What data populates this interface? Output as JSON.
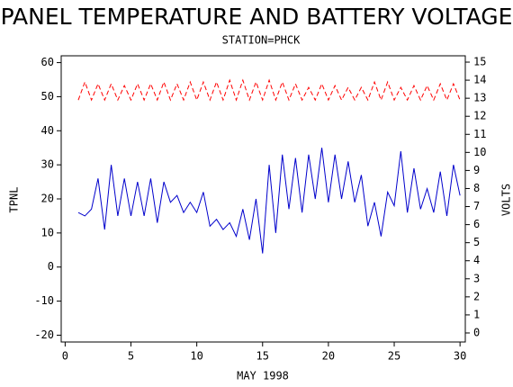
{
  "chart_data": {
    "type": "line",
    "title": "PANEL TEMPERATURE AND BATTERY VOLTAGE",
    "subtitle": "STATION=PHCK",
    "xlabel": "MAY 1998",
    "ylabel": "TPNL",
    "y2label": "VOLTS",
    "x": [
      1,
      1.5,
      2,
      2.5,
      3,
      3.5,
      4,
      4.5,
      5,
      5.5,
      6,
      6.5,
      7,
      7.5,
      8,
      8.5,
      9,
      9.5,
      10,
      10.5,
      11,
      11.5,
      12,
      12.5,
      13,
      13.5,
      14,
      14.5,
      15,
      15.5,
      16,
      16.5,
      17,
      17.5,
      18,
      18.5,
      19,
      19.5,
      20,
      20.5,
      21,
      21.5,
      22,
      22.5,
      23,
      23.5,
      24,
      24.5,
      25,
      25.5,
      26,
      26.5,
      27,
      27.5,
      28,
      28.5,
      29,
      29.5,
      30
    ],
    "series": [
      {
        "name": "TPNL",
        "color": "#0000cc",
        "axis": "y",
        "dash": false,
        "values": [
          16,
          15,
          17,
          26,
          11,
          30,
          15,
          26,
          15,
          25,
          15,
          26,
          13,
          25,
          19,
          21,
          16,
          19,
          16,
          22,
          12,
          14,
          11,
          13,
          9,
          17,
          8,
          20,
          4,
          30,
          10,
          33,
          17,
          32,
          16,
          33,
          20,
          35,
          19,
          33,
          20,
          31,
          19,
          27,
          12,
          19,
          9,
          22,
          18,
          34,
          16,
          29,
          17,
          23,
          16,
          28,
          15,
          30,
          21
        ]
      },
      {
        "name": "VOLTS",
        "color": "#ff0000",
        "axis": "y2",
        "dash": true,
        "values": [
          12.9,
          13.9,
          12.9,
          13.8,
          12.9,
          13.8,
          12.9,
          13.7,
          12.9,
          13.8,
          12.9,
          13.8,
          12.9,
          13.9,
          12.9,
          13.8,
          12.9,
          13.9,
          12.9,
          13.9,
          12.9,
          13.9,
          12.9,
          14.0,
          12.9,
          14.0,
          12.9,
          13.9,
          12.9,
          14.0,
          12.9,
          13.9,
          12.9,
          13.8,
          12.9,
          13.6,
          12.9,
          13.8,
          12.9,
          13.7,
          12.9,
          13.6,
          12.9,
          13.6,
          12.9,
          13.9,
          12.9,
          13.9,
          12.9,
          13.6,
          12.9,
          13.7,
          12.9,
          13.7,
          12.9,
          13.8,
          12.9,
          13.8,
          12.9
        ]
      }
    ],
    "xlim": [
      -0.3,
      30.4
    ],
    "xticks": [
      0,
      5,
      10,
      15,
      20,
      25,
      30
    ],
    "ylim": [
      -22,
      62
    ],
    "yticks": [
      -20,
      -10,
      0,
      10,
      20,
      30,
      40,
      50,
      60
    ],
    "y2lim": [
      -0.5,
      15.35
    ],
    "y2ticks": [
      0,
      1,
      2,
      3,
      4,
      5,
      6,
      7,
      8,
      9,
      10,
      11,
      12,
      13,
      14,
      15
    ]
  }
}
